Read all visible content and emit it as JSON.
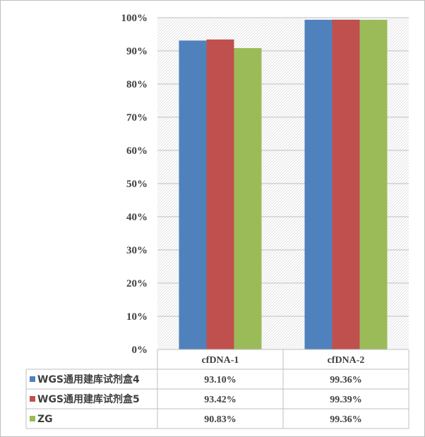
{
  "chart_data": {
    "type": "bar",
    "categories": [
      "cfDNA-1",
      "cfDNA-2"
    ],
    "series": [
      {
        "name": "WGS通用建库试剂盒4",
        "color": "#4F81BD",
        "values": [
          93.1,
          99.36
        ],
        "labels": [
          "93.10%",
          "99.36%"
        ]
      },
      {
        "name": "WGS通用建库试剂盒5",
        "color": "#C0504D",
        "values": [
          93.42,
          99.39
        ],
        "labels": [
          "93.42%",
          "99.39%"
        ]
      },
      {
        "name": "ZG",
        "color": "#9BBB59",
        "values": [
          90.83,
          99.36
        ],
        "labels": [
          "90.83%",
          "99.36%"
        ]
      }
    ],
    "ylim": [
      0,
      100
    ],
    "yticks": [
      "0%",
      "10%",
      "20%",
      "30%",
      "40%",
      "50%",
      "60%",
      "70%",
      "80%",
      "90%",
      "100%"
    ],
    "title": "",
    "xlabel": "",
    "ylabel": "",
    "grid": true,
    "legend": "data-table"
  }
}
